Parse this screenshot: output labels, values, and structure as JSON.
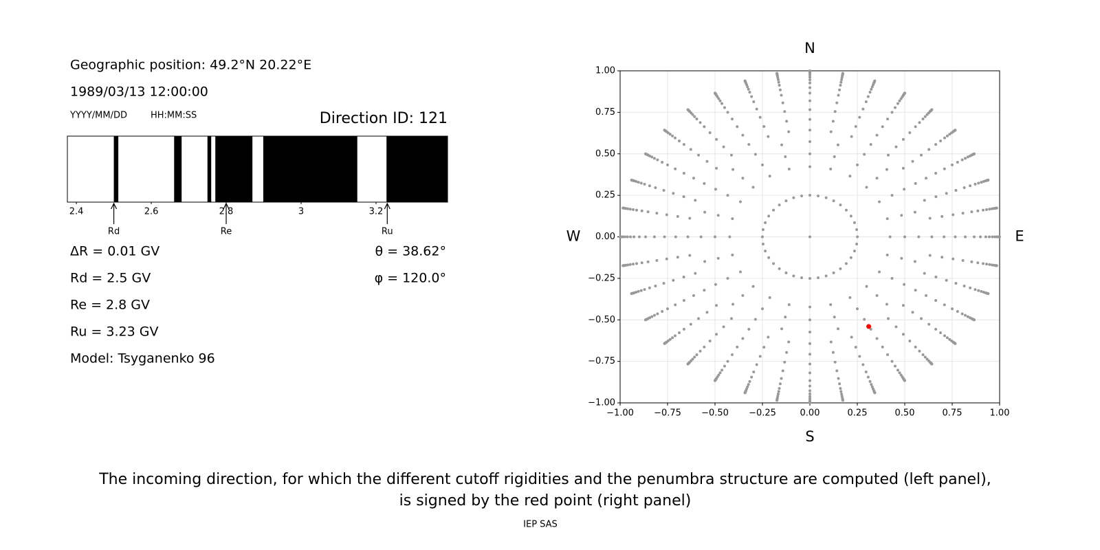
{
  "info": {
    "position": "Geographic position: 49.2°N 20.22°E",
    "datetime": "1989/03/13 12:00:00",
    "date_format": "YYYY/MM/DD",
    "time_format": "HH:MM:SS",
    "direction": "Direction ID: 121",
    "params": [
      "ΔR = 0.01 GV",
      "Rd = 2.5 GV",
      "Re = 2.8 GV",
      "Ru = 3.23 GV",
      "Model: Tsyganenko 96"
    ],
    "angles": [
      "θ = 38.62°",
      "φ = 120.0°"
    ]
  },
  "chart_data": [
    {
      "type": "penumbra",
      "color": "#000000",
      "xlim": [
        2.376,
        3.391
      ],
      "xticks": [
        2.4,
        2.6,
        2.8,
        3.0,
        3.2
      ],
      "bands": [
        [
          2.5,
          2.512
        ],
        [
          2.661,
          2.681
        ],
        [
          2.75,
          2.76
        ],
        [
          2.771,
          2.87
        ],
        [
          2.899,
          3.15
        ],
        [
          3.228,
          3.391
        ]
      ],
      "markers": [
        {
          "label": "Rd",
          "value": 2.5
        },
        {
          "label": "Re",
          "value": 2.8
        },
        {
          "label": "Ru",
          "value": 3.23
        }
      ]
    },
    {
      "type": "scatter",
      "color": "#999999",
      "grid": true,
      "xlim": [
        -1,
        1
      ],
      "ylim": [
        -1,
        1
      ],
      "xticks": [
        {
          "value": -1,
          "label": "−1.00"
        },
        {
          "value": -0.75,
          "label": "−0.75"
        },
        {
          "value": -0.5,
          "label": "−0.50"
        },
        {
          "value": -0.25,
          "label": "−0.25"
        },
        {
          "value": 0,
          "label": "0.00"
        },
        {
          "value": 0.25,
          "label": "0.25"
        },
        {
          "value": 0.5,
          "label": "0.50"
        },
        {
          "value": 0.75,
          "label": "0.75"
        },
        {
          "value": 1,
          "label": "1.00"
        }
      ],
      "yticks": [
        {
          "value": -1,
          "label": "−1.00"
        },
        {
          "value": -0.75,
          "label": "−0.75"
        },
        {
          "value": -0.5,
          "label": "−0.50"
        },
        {
          "value": -0.25,
          "label": "−0.25"
        },
        {
          "value": 0,
          "label": "0.00"
        },
        {
          "value": 0.25,
          "label": "0.25"
        },
        {
          "value": 0.5,
          "label": "0.50"
        },
        {
          "value": 0.75,
          "label": "0.75"
        },
        {
          "value": 1,
          "label": "1.00"
        }
      ],
      "compass": {
        "north": "N",
        "south": "S",
        "west": "W",
        "east": "E"
      },
      "zenith_deg": [
        0,
        14.5,
        25,
        30,
        35,
        40,
        45,
        50,
        55,
        60,
        64,
        68,
        71,
        74,
        77,
        80,
        82,
        84,
        86,
        88,
        90
      ],
      "points_per_ring": [
        1,
        36,
        24,
        24,
        24,
        36,
        36,
        36,
        36,
        36,
        36,
        36,
        36,
        36,
        36,
        36,
        36,
        36,
        36,
        36,
        36
      ],
      "highlight": {
        "x": 0.31,
        "y": -0.54,
        "color": "#ff0000"
      }
    }
  ],
  "caption": [
    "The incoming direction, for which the different cutoff rigidities and the penumbra structure are computed (left panel),",
    "is signed by the red point (right panel)"
  ],
  "footer": "IEP SAS"
}
